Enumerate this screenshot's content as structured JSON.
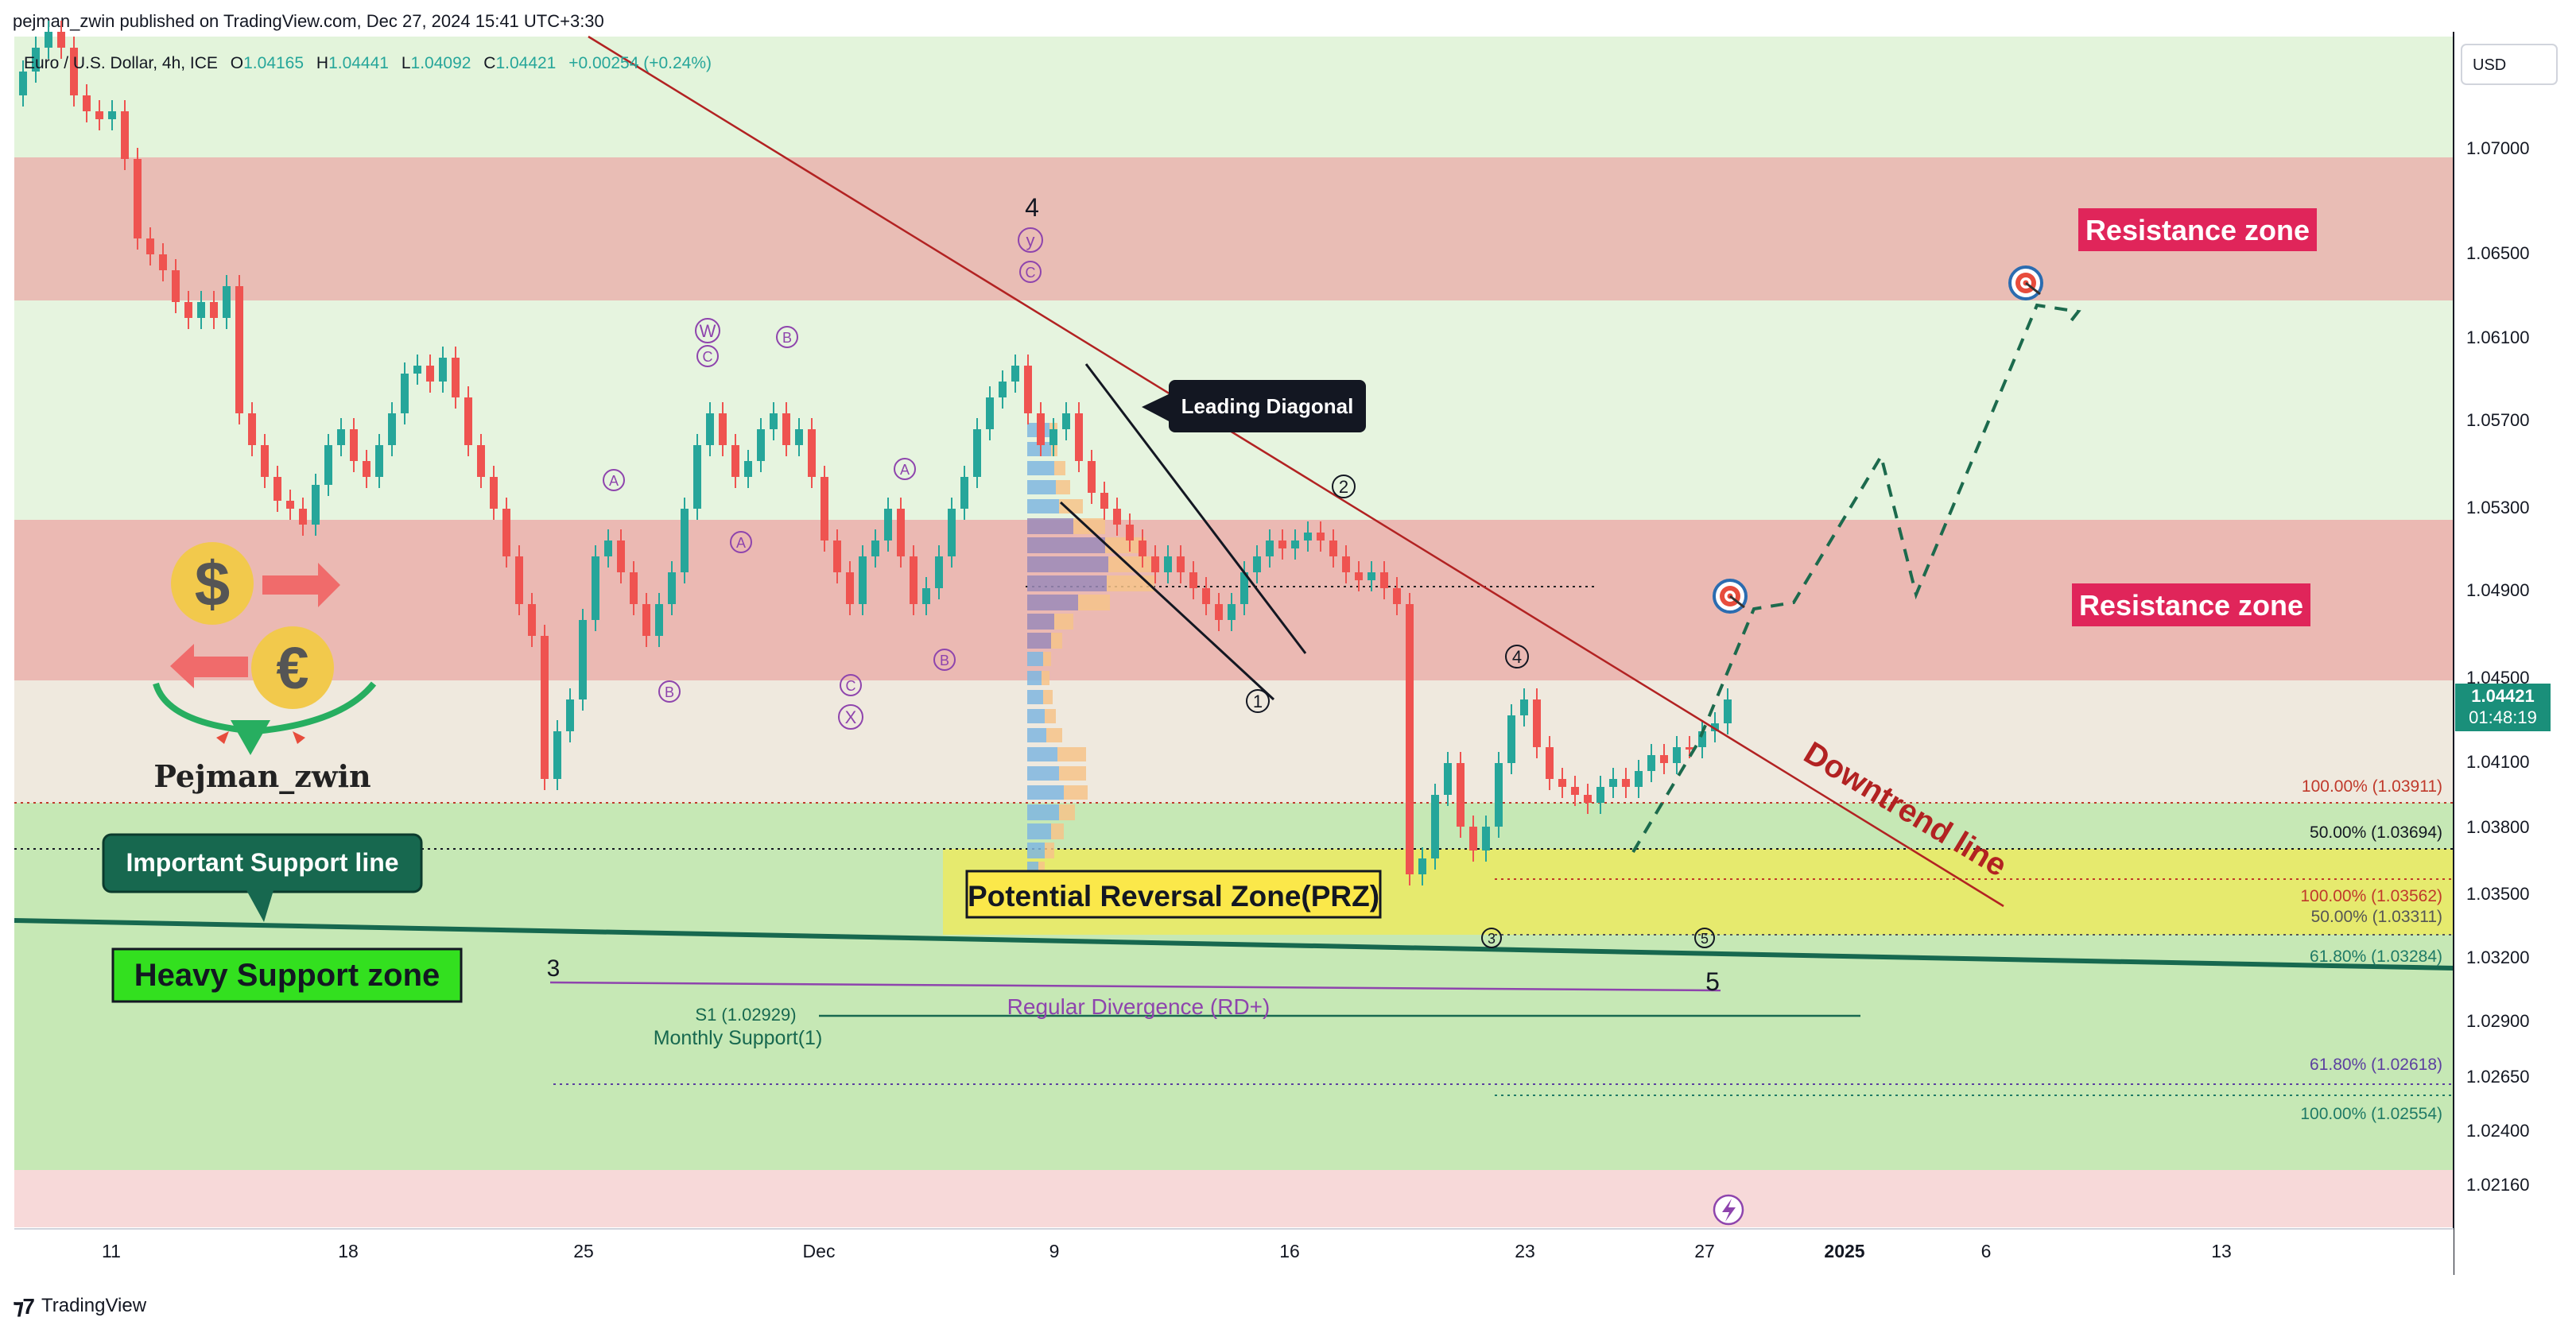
{
  "publisher_line": "pejman_zwin published on TradingView.com, Dec 27, 2024 15:41 UTC+3:30",
  "footer": {
    "brand": "TradingView"
  },
  "legend": {
    "symbol": "Euro / U.S. Dollar, 4h, ICE",
    "open_label": "O",
    "open": "1.04165",
    "high_label": "H",
    "high": "1.04441",
    "low_label": "L",
    "low": "1.04092",
    "close_label": "C",
    "close": "1.04421",
    "change": "+0.00254 (+0.24%)"
  },
  "currency": "USD",
  "price_tag": {
    "price": "1.04421",
    "countdown": "01:48:19"
  },
  "colors": {
    "up": "#26a69a",
    "down": "#ef5350",
    "resistance": "#e9b6b0",
    "support": "#c6e8b5",
    "prz": "#e6e86e",
    "trendline": "#b22222",
    "support_line": "#17684f",
    "wave": "#8e44ad"
  },
  "chart_data": {
    "type": "candlestick",
    "timeframe": "4h",
    "x_ticks": [
      "11",
      "18",
      "25",
      "Dec",
      "9",
      "16",
      "23",
      "27",
      "2025",
      "6",
      "13"
    ],
    "y_ticks": [
      "1.07000",
      "1.06500",
      "1.06100",
      "1.05700",
      "1.05300",
      "1.04900",
      "1.04500",
      "1.04100",
      "1.03800",
      "1.03500",
      "1.03200",
      "1.02900",
      "1.02650",
      "1.02400",
      "1.02160"
    ],
    "ylim": [
      1.0195,
      1.0745
    ],
    "zones": [
      {
        "name": "Resistance zone",
        "from": 1.0628,
        "to": 1.0695
      },
      {
        "name": "Resistance zone",
        "from": 1.0448,
        "to": 1.0524
      },
      {
        "name": "Heavy Support zone",
        "from": 1.0222,
        "to": 1.0391
      },
      {
        "name": "Potential Reversal Zone(PRZ)",
        "from": 1.0331,
        "to": 1.0372
      }
    ],
    "fib_levels": [
      {
        "label": "100.00% (1.03911)",
        "value": 1.03911
      },
      {
        "label": "50.00% (1.03694)",
        "value": 1.03694
      },
      {
        "label": "100.00% (1.03562)",
        "value": 1.03562
      },
      {
        "label": "50.00% (1.03311)",
        "value": 1.03311
      },
      {
        "label": "61.80% (1.03284)",
        "value": 1.03284
      },
      {
        "label": "61.80% (1.02618)",
        "value": 1.02618
      },
      {
        "label": "100.00% (1.02554)",
        "value": 1.02554
      }
    ],
    "pivot": {
      "label": "S1 (1.02929)",
      "value": 1.02929,
      "sublabel": "Monthly Support(1)"
    },
    "annotations": {
      "resistance_upper": "Resistance zone",
      "resistance_lower": "Resistance zone",
      "heavy_support": "Heavy Support zone",
      "important_support": "Important Support line",
      "prz": "Potential Reversal Zone(PRZ)",
      "leading_diagonal": "Leading Diagonal",
      "downtrend": "Downtrend line",
      "divergence": "Regular Divergence (RD+)",
      "brand": "Pejman_zwin"
    },
    "wave_labels": [
      "4",
      "y",
      "C",
      "W",
      "C",
      "B",
      "A",
      "A",
      "A",
      "B",
      "C",
      "X",
      "B",
      "2",
      "1",
      "4",
      "3",
      "5",
      "3",
      "5"
    ]
  }
}
